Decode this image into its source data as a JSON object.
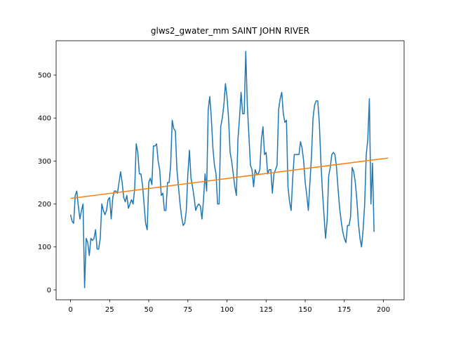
{
  "chart_data": {
    "type": "line",
    "title": "glws2_gwater_mm SAINT JOHN RIVER",
    "xlabel": "",
    "ylabel": "",
    "xlim": [
      -9.2,
      213.2
    ],
    "ylim": [
      -23,
      580
    ],
    "x_ticks": [
      0,
      25,
      50,
      75,
      100,
      125,
      150,
      175,
      200
    ],
    "y_ticks": [
      0,
      100,
      200,
      300,
      400,
      500
    ],
    "grid": false,
    "series": [
      {
        "color": "#1f77b4",
        "x_start": 0,
        "x_step": 1,
        "values": [
          175,
          160,
          155,
          220,
          230,
          195,
          165,
          185,
          200,
          5,
          120,
          110,
          80,
          120,
          115,
          120,
          140,
          95,
          95,
          120,
          200,
          185,
          175,
          185,
          210,
          215,
          165,
          215,
          230,
          230,
          225,
          250,
          275,
          250,
          215,
          205,
          220,
          190,
          200,
          210,
          200,
          235,
          340,
          320,
          270,
          270,
          245,
          200,
          155,
          140,
          250,
          260,
          245,
          335,
          335,
          340,
          300,
          280,
          220,
          225,
          185,
          185,
          250,
          250,
          290,
          395,
          375,
          370,
          280,
          240,
          200,
          170,
          150,
          155,
          185,
          270,
          325,
          260,
          240,
          215,
          185,
          195,
          200,
          195,
          165,
          210,
          270,
          230,
          420,
          450,
          400,
          330,
          290,
          270,
          200,
          200,
          380,
          400,
          430,
          480,
          450,
          400,
          320,
          300,
          270,
          240,
          220,
          350,
          400,
          460,
          410,
          410,
          555,
          430,
          360,
          290,
          280,
          240,
          280,
          270,
          270,
          280,
          350,
          380,
          315,
          320,
          270,
          280,
          280,
          225,
          270,
          280,
          290,
          420,
          445,
          460,
          410,
          390,
          395,
          240,
          205,
          185,
          260,
          315,
          315,
          315,
          315,
          345,
          330,
          300,
          250,
          220,
          185,
          250,
          310,
          400,
          430,
          440,
          440,
          390,
          300,
          230,
          175,
          120,
          160,
          265,
          285,
          315,
          320,
          315,
          285,
          235,
          190,
          160,
          135,
          120,
          110,
          150,
          150,
          170,
          285,
          275,
          250,
          210,
          155,
          120,
          100,
          140,
          200,
          315,
          350,
          445,
          200,
          295,
          135
        ]
      },
      {
        "color": "#ff7f0e",
        "x": [
          0,
          203
        ],
        "values": [
          213,
          307
        ]
      }
    ]
  }
}
